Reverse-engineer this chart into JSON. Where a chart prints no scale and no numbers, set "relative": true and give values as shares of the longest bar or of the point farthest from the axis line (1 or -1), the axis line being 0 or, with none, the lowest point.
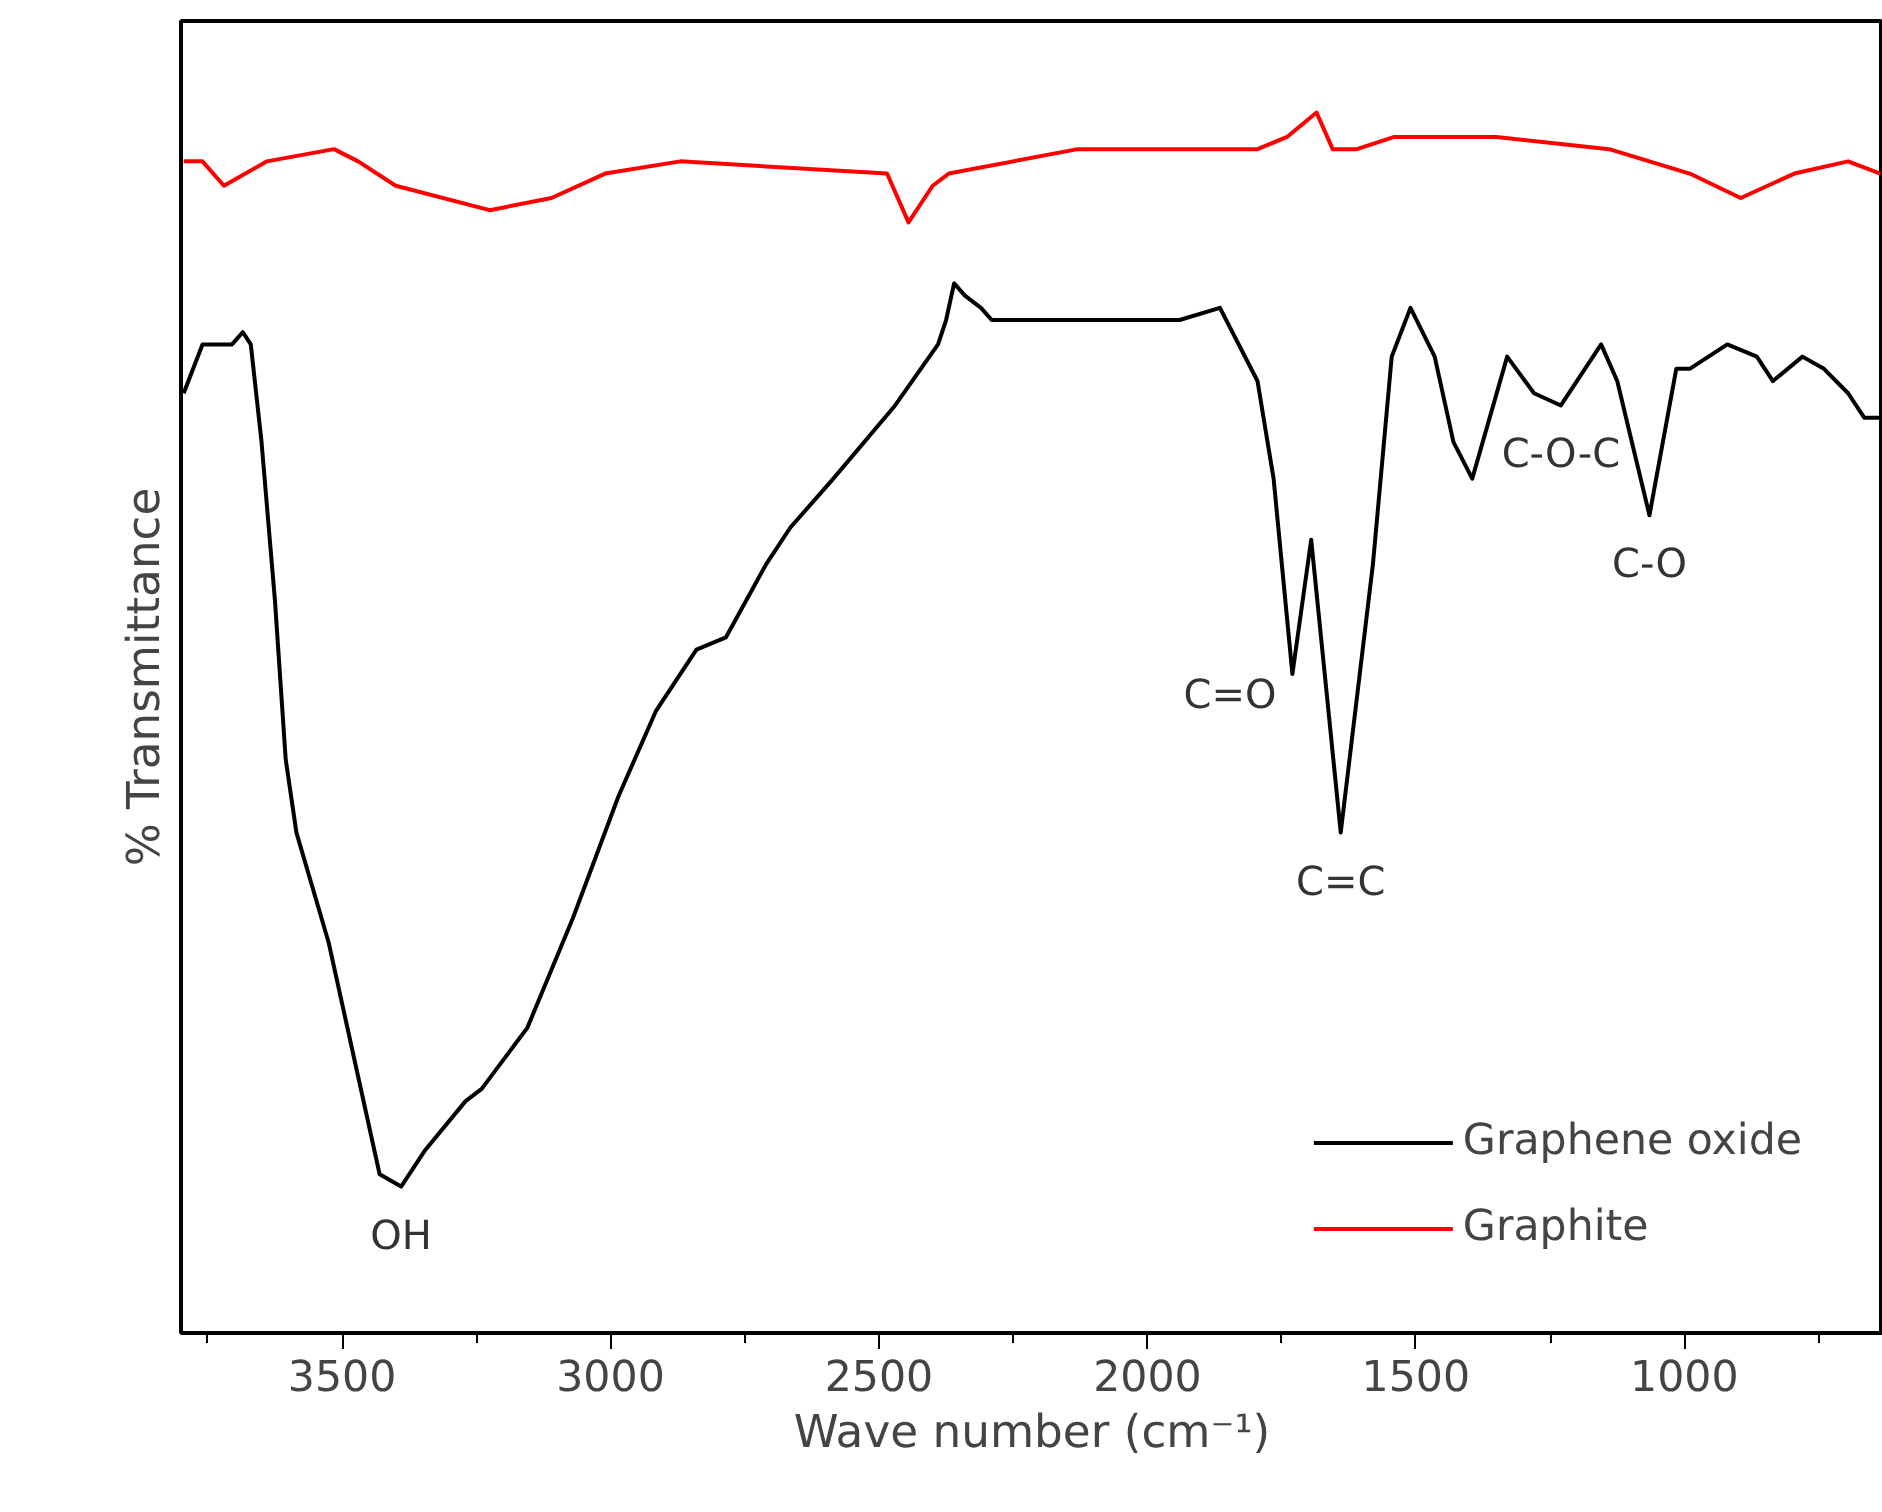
{
  "chart_data": {
    "type": "line",
    "relative": true,
    "xlabel": "Wave number (cm⁻¹)",
    "ylabel": "% Transmittance",
    "xlim": [
      3800,
      630
    ],
    "xticks": [
      {
        "value": 3750,
        "label": null
      },
      3500,
      {
        "value": 3250,
        "label": null
      },
      3000,
      {
        "value": 2750,
        "label": null
      },
      2500,
      {
        "value": 2250,
        "label": null
      },
      2000,
      {
        "value": 1750,
        "label": null
      },
      1500,
      {
        "value": 1250,
        "label": null
      },
      1000,
      {
        "value": 750,
        "label": null
      }
    ],
    "tick_labels": "x",
    "grid": false,
    "legend": "bottom right",
    "marker": "none",
    "line_style": "solid",
    "series": [
      {
        "name": "Graphene oxide",
        "color": "#000000",
        "x": [
          3795,
          3760,
          3735,
          3705,
          3685,
          3670,
          3650,
          3625,
          3605,
          3585,
          3525,
          3470,
          3430,
          3390,
          3345,
          3270,
          3240,
          3155,
          3070,
          2985,
          2915,
          2840,
          2785,
          2710,
          2665,
          2585,
          2470,
          2390,
          2375,
          2360,
          2340,
          2310,
          2290,
          2130,
          2070,
          1940,
          1865,
          1795,
          1765,
          1730,
          1695,
          1640,
          1580,
          1545,
          1510,
          1465,
          1430,
          1395,
          1330,
          1280,
          1230,
          1155,
          1125,
          1065,
          1015,
          990,
          920,
          865,
          835,
          780,
          740,
          695,
          665,
          635
        ],
        "values": [
          0.77,
          0.81,
          0.81,
          0.81,
          0.82,
          0.81,
          0.73,
          0.6,
          0.47,
          0.41,
          0.32,
          0.21,
          0.13,
          0.12,
          0.15,
          0.19,
          0.2,
          0.25,
          0.34,
          0.44,
          0.51,
          0.56,
          0.57,
          0.63,
          0.66,
          0.7,
          0.76,
          0.81,
          0.83,
          0.86,
          0.85,
          0.84,
          0.83,
          0.83,
          0.83,
          0.83,
          0.84,
          0.78,
          0.7,
          0.54,
          0.65,
          0.41,
          0.63,
          0.8,
          0.84,
          0.8,
          0.73,
          0.7,
          0.8,
          0.77,
          0.76,
          0.81,
          0.78,
          0.67,
          0.79,
          0.79,
          0.81,
          0.8,
          0.78,
          0.8,
          0.79,
          0.77,
          0.75,
          0.75
        ]
      },
      {
        "name": "Graphite",
        "color": "#ff0000",
        "x": [
          3795,
          3760,
          3720,
          3640,
          3515,
          3470,
          3400,
          3225,
          3110,
          3010,
          2870,
          2485,
          2445,
          2400,
          2370,
          2130,
          2070,
          1795,
          1740,
          1685,
          1655,
          1610,
          1540,
          1350,
          1140,
          990,
          895,
          795,
          695,
          635
        ],
        "values": [
          0.96,
          0.96,
          0.94,
          0.96,
          0.97,
          0.96,
          0.94,
          0.92,
          0.93,
          0.95,
          0.96,
          0.95,
          0.91,
          0.94,
          0.95,
          0.97,
          0.97,
          0.97,
          0.98,
          1.0,
          0.97,
          0.97,
          0.98,
          0.98,
          0.97,
          0.95,
          0.93,
          0.95,
          0.96,
          0.95
        ]
      }
    ],
    "annotations": [
      {
        "text": "OH",
        "x": 3390,
        "y": 0.12
      },
      {
        "text": "C=O",
        "x": 1730,
        "y": 0.54
      },
      {
        "text": "C=C",
        "x": 1640,
        "y": 0.41
      },
      {
        "text": "C-O-C",
        "x": 1230,
        "y": 0.76
      },
      {
        "text": "C-O",
        "x": 1065,
        "y": 0.67
      }
    ]
  }
}
